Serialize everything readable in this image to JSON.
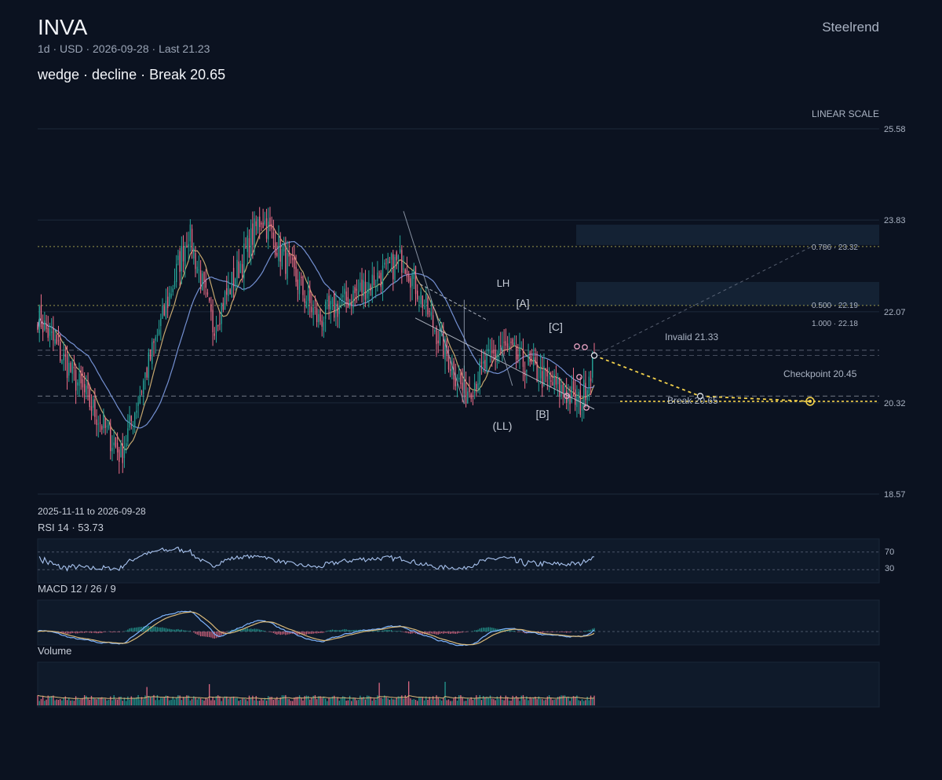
{
  "header": {
    "ticker": "INVA",
    "meta": "1d · USD · 2026-09-28 · Last 21.23",
    "headline": "wedge · decline · Break 20.65",
    "brand": "Steelrend",
    "scale_label": "LINEAR SCALE",
    "date_range": "2025-11-11 to 2026-09-28"
  },
  "panels": {
    "rsi_label": "RSI 14 · 53.73",
    "rsi_levels": [
      "70",
      "30"
    ],
    "macd_label": "MACD 12 / 26 / 9",
    "volume_label": "Volume"
  },
  "colors": {
    "background": "#0b1220",
    "up": "#26a69a",
    "down": "#ef6f8a",
    "ma_fast": "#d9b878",
    "ma_slow": "#7f9fe6",
    "fib": "#c9c35a",
    "target": "#f2d04b",
    "invalid": "#e8a3c3"
  },
  "chart_data": {
    "type": "candlestick",
    "x_range": [
      "2025-11-11",
      "2026-09-28"
    ],
    "y_axis": {
      "min": 18.57,
      "max": 25.58,
      "ticks": [
        25.58,
        23.83,
        22.07,
        20.32,
        18.57
      ],
      "scale": "linear"
    },
    "last": 21.23,
    "pattern": "wedge",
    "direction": "decline",
    "levels": {
      "break": {
        "label": "Break 20.65",
        "value": 20.65
      },
      "invalid": {
        "label": "Invalid 21.33",
        "value": 21.33
      },
      "checkpoint": {
        "label": "Checkpoint 20.45",
        "value": 20.45
      }
    },
    "fib_levels": [
      {
        "label": "0.786 · 23.32",
        "value": 23.32
      },
      {
        "label": "0.500 · 22.19",
        "value": 22.19
      },
      {
        "label": "1.000 · 22.18",
        "value": 22.18
      }
    ],
    "swing_labels": [
      "LH",
      "(LL)",
      "[A]",
      "[B]",
      "[C]"
    ],
    "rsi": {
      "period": 14,
      "last": 53.73,
      "levels": [
        70,
        30
      ]
    },
    "macd": {
      "fast": 12,
      "slow": 26,
      "signal": 9
    },
    "key_closes": [
      {
        "date": "2025-11-11",
        "close": 22.0
      },
      {
        "date": "2025-12-29",
        "close": 19.3
      },
      {
        "date": "2026-02-06",
        "close": 23.6
      },
      {
        "date": "2026-02-20",
        "close": 21.8
      },
      {
        "date": "2026-03-20",
        "close": 23.9
      },
      {
        "date": "2026-04-22",
        "close": 21.9
      },
      {
        "date": "2026-06-10",
        "close": 23.1
      },
      {
        "date": "2026-07-15",
        "close": 20.5
      },
      {
        "date": "2026-08-05",
        "close": 21.4
      },
      {
        "date": "2026-09-20",
        "close": 20.3
      },
      {
        "date": "2026-09-28",
        "close": 21.23
      }
    ]
  }
}
